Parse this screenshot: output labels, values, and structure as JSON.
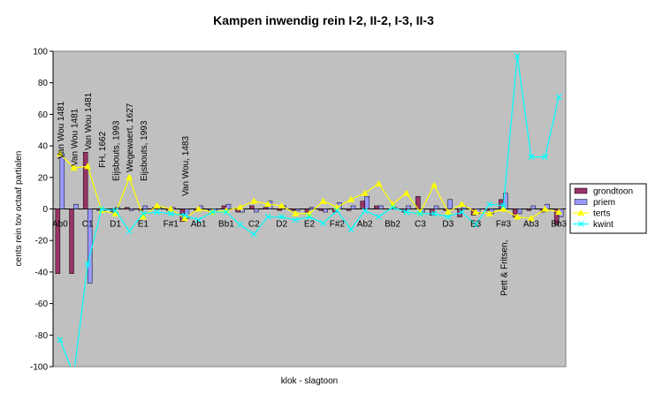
{
  "chart_data": {
    "type": "bar-line",
    "title": "Kampen inwendig rein I-2, II-2, I-3, II-3",
    "x_label": "klok - slagtoon",
    "y_label": "cents rein tov octaaf partialen",
    "categories": [
      "Ab0",
      null,
      "C1",
      null,
      "D1",
      null,
      "E1",
      null,
      "F#1",
      null,
      "Ab1",
      null,
      "Bb1",
      null,
      "C2",
      null,
      "D2",
      null,
      "E2",
      null,
      "F#2",
      null,
      "Ab2",
      null,
      "Bb2",
      null,
      "C3",
      null,
      "D3",
      null,
      "E3",
      null,
      "F#3",
      null,
      "Ab3",
      null,
      "Bb3"
    ],
    "series": [
      {
        "name": "grondtoon",
        "kind": "bar",
        "color": "#993366",
        "values": [
          -41,
          -41,
          36,
          -1,
          -2,
          1,
          -1,
          1,
          -1,
          -8,
          -1,
          -1,
          2,
          -2,
          2,
          1,
          -1,
          -1,
          -2,
          -1,
          -2,
          -1,
          5,
          2,
          0,
          -2,
          8,
          -4,
          -1,
          -5,
          -4,
          -1,
          6,
          -5,
          -1,
          -2,
          -10
        ]
      },
      {
        "name": "priem",
        "kind": "bar",
        "color": "#9999ff",
        "values": [
          35,
          3,
          -47,
          -1,
          1,
          -1,
          2,
          1,
          1,
          -6,
          2,
          -2,
          3,
          -2,
          -2,
          5,
          2,
          -1,
          1,
          -2,
          4,
          2,
          8,
          2,
          1,
          2,
          -2,
          2,
          6,
          2,
          -3,
          -3,
          10,
          -3,
          2,
          3,
          -5
        ]
      },
      {
        "name": "terts",
        "kind": "line",
        "marker": "triangle",
        "color": "#ffff00",
        "values": [
          35,
          26,
          27,
          -1,
          -3,
          20,
          -5,
          2,
          0,
          -6,
          0,
          -2,
          -1,
          1,
          5,
          3,
          2,
          -3,
          -3,
          5,
          1,
          6,
          10,
          16,
          3,
          10,
          -2,
          15,
          -2,
          3,
          -2,
          -3,
          0,
          -5,
          -6,
          0,
          -2
        ]
      },
      {
        "name": "kwint",
        "kind": "line",
        "marker": "x",
        "color": "#00ffff",
        "values": [
          -83,
          -105,
          -35,
          0,
          -1,
          -14,
          -3,
          -2,
          -3,
          -4,
          -7,
          -2,
          -2,
          -10,
          -16,
          -5,
          -5,
          -7,
          -5,
          -9,
          -1,
          -13,
          -1,
          -5,
          1,
          -2,
          -3,
          -3,
          -5,
          -2,
          -10,
          3,
          2,
          97,
          33,
          33,
          71
        ]
      }
    ],
    "annotations": [
      "Van Wou 1481",
      "Van Wou 1481",
      "Van Wou 1481",
      "FH, 1662",
      "Eijsbouts, 1993",
      "Wegewaert, 1627",
      "Eijsbouts, 1993",
      "Van Wou, 1483",
      "Pett & Fritsen,"
    ],
    "ylim": [
      -100,
      100
    ],
    "yticks": [
      -100,
      -80,
      -60,
      -40,
      -20,
      0,
      20,
      40,
      60,
      80,
      100
    ],
    "plot_background": "#c0c0c0",
    "legend": "right"
  }
}
